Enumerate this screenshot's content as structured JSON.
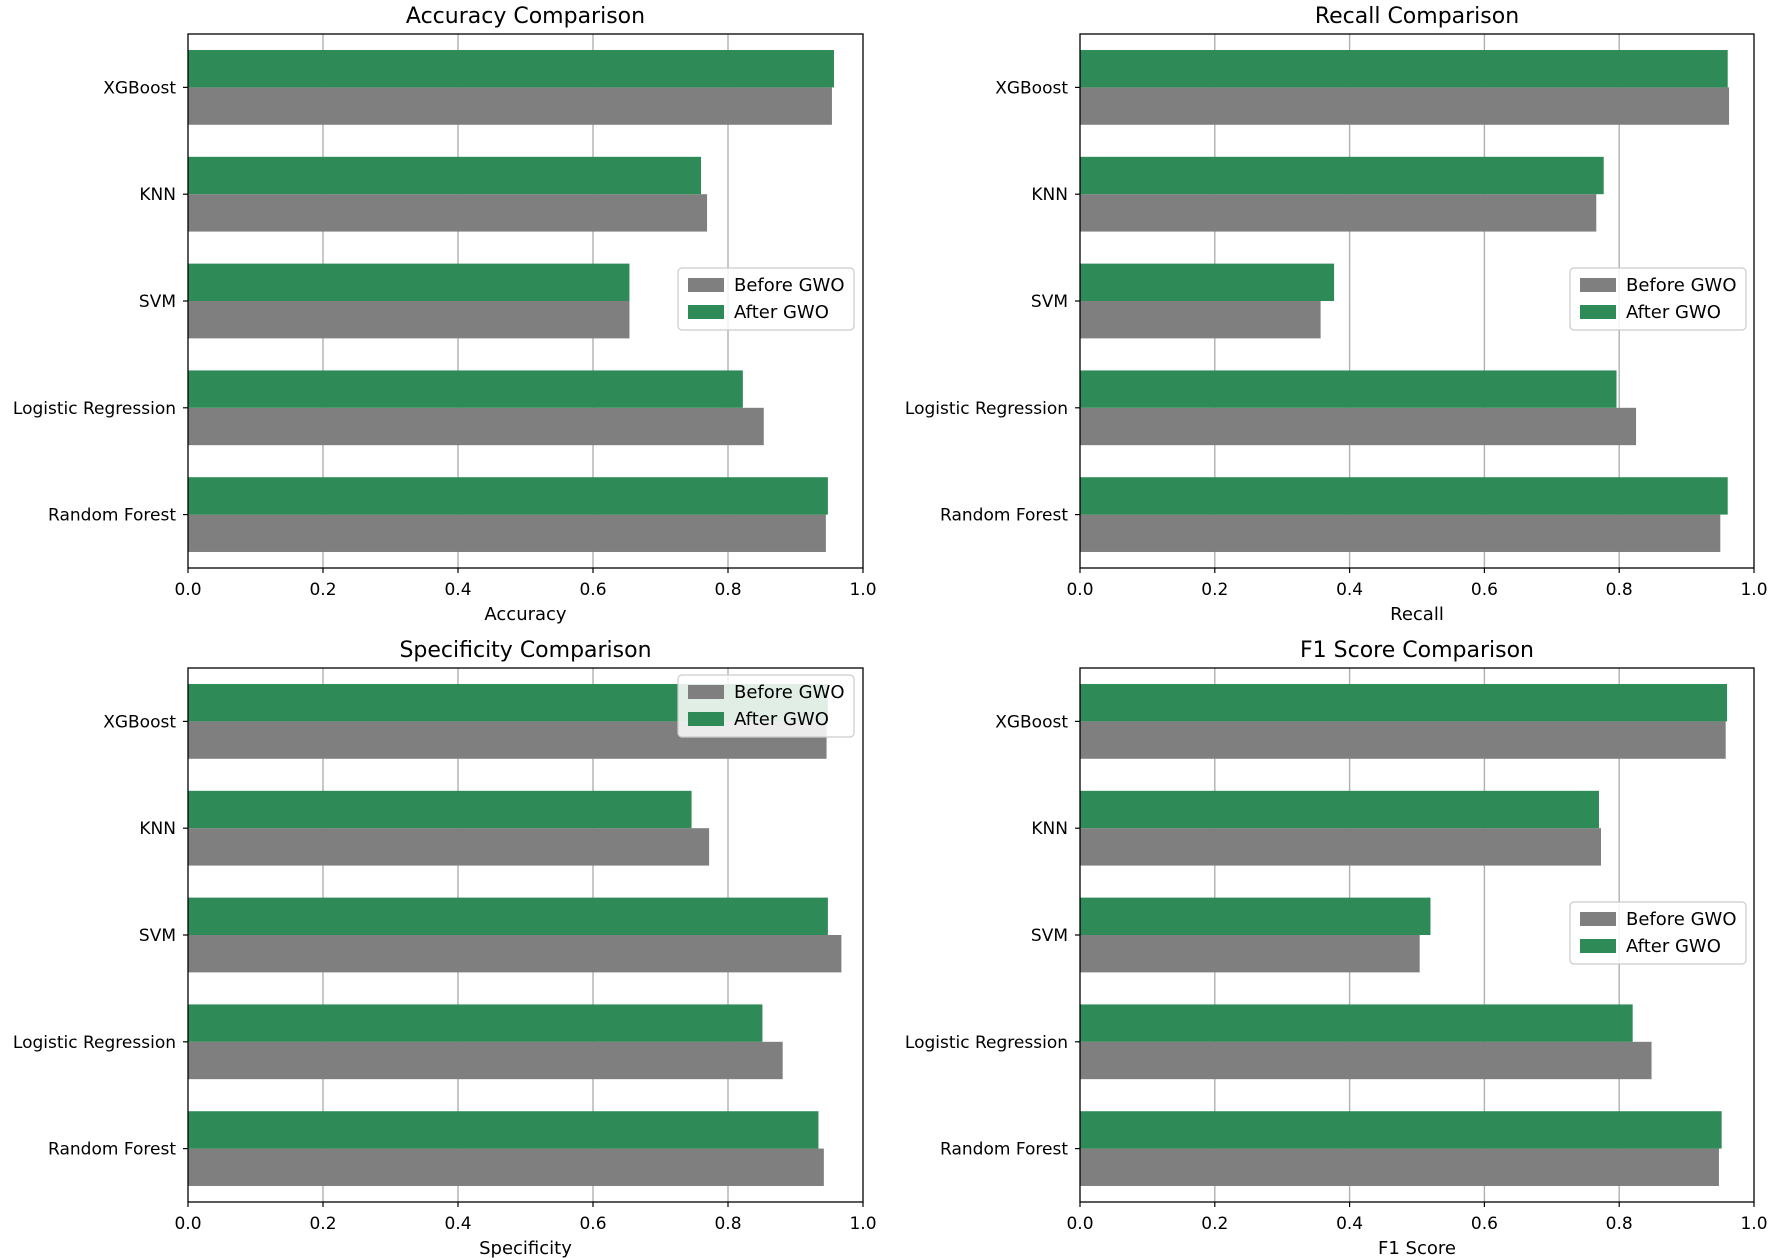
{
  "colors": {
    "before": "#7f7f7f",
    "after": "#2e8b57",
    "grid": "#b0b0b0",
    "axis": "#000000"
  },
  "chart_data": [
    {
      "type": "bar",
      "orientation": "horizontal",
      "title": "Accuracy Comparison",
      "xlabel": "Accuracy",
      "ylabel": "",
      "xlim": [
        0,
        1.0
      ],
      "xticks": [
        "0.0",
        "0.2",
        "0.4",
        "0.6",
        "0.8",
        "1.0"
      ],
      "grid": "vertical",
      "legend": "center-right",
      "categories": [
        "Random Forest",
        "Logistic Regression",
        "SVM",
        "KNN",
        "XGBoost"
      ],
      "series": [
        {
          "name": "Before GWO",
          "values": [
            0.945,
            0.853,
            0.654,
            0.769,
            0.954
          ]
        },
        {
          "name": "After GWO",
          "values": [
            0.948,
            0.822,
            0.654,
            0.76,
            0.957
          ]
        }
      ]
    },
    {
      "type": "bar",
      "orientation": "horizontal",
      "title": "Recall Comparison",
      "xlabel": "Recall",
      "ylabel": "",
      "xlim": [
        0,
        1.0
      ],
      "xticks": [
        "0.0",
        "0.2",
        "0.4",
        "0.6",
        "0.8",
        "1.0"
      ],
      "grid": "vertical",
      "legend": "center-right",
      "categories": [
        "Random Forest",
        "Logistic Regression",
        "SVM",
        "KNN",
        "XGBoost"
      ],
      "series": [
        {
          "name": "Before GWO",
          "values": [
            0.95,
            0.825,
            0.357,
            0.766,
            0.963
          ]
        },
        {
          "name": "After GWO",
          "values": [
            0.961,
            0.796,
            0.377,
            0.777,
            0.961
          ]
        }
      ]
    },
    {
      "type": "bar",
      "orientation": "horizontal",
      "title": "Specificity Comparison",
      "xlabel": "Specificity",
      "ylabel": "",
      "xlim": [
        0,
        1.0
      ],
      "xticks": [
        "0.0",
        "0.2",
        "0.4",
        "0.6",
        "0.8",
        "1.0"
      ],
      "grid": "vertical",
      "legend": "upper-right",
      "categories": [
        "Random Forest",
        "Logistic Regression",
        "SVM",
        "KNN",
        "XGBoost"
      ],
      "series": [
        {
          "name": "Before GWO",
          "values": [
            0.942,
            0.881,
            0.968,
            0.772,
            0.946
          ]
        },
        {
          "name": "After GWO",
          "values": [
            0.934,
            0.851,
            0.948,
            0.746,
            0.948
          ]
        }
      ]
    },
    {
      "type": "bar",
      "orientation": "horizontal",
      "title": "F1 Score Comparison",
      "xlabel": "F1 Score",
      "ylabel": "",
      "xlim": [
        0,
        1.0
      ],
      "xticks": [
        "0.0",
        "0.2",
        "0.4",
        "0.6",
        "0.8",
        "1.0"
      ],
      "grid": "vertical",
      "legend": "center-right",
      "categories": [
        "Random Forest",
        "Logistic Regression",
        "SVM",
        "KNN",
        "XGBoost"
      ],
      "series": [
        {
          "name": "Before GWO",
          "values": [
            0.948,
            0.848,
            0.504,
            0.773,
            0.958
          ]
        },
        {
          "name": "After GWO",
          "values": [
            0.952,
            0.82,
            0.52,
            0.77,
            0.96
          ]
        }
      ]
    }
  ]
}
